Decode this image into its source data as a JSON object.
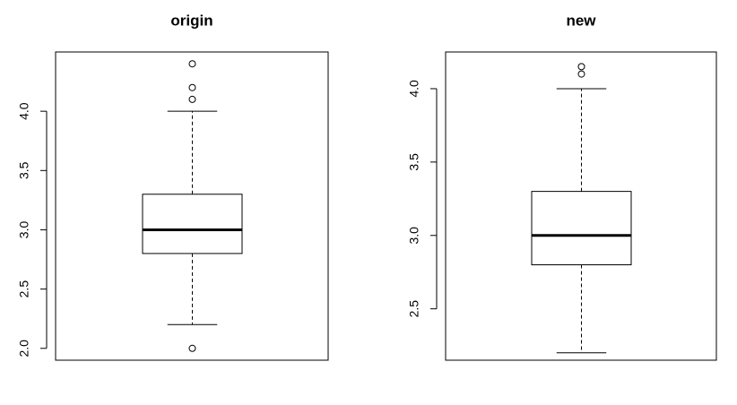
{
  "chart_data": [
    {
      "type": "box",
      "title": "origin",
      "xlabel": "",
      "ylabel": "",
      "ylim": [
        1.9,
        4.5
      ],
      "y_ticks": [
        2.0,
        2.5,
        3.0,
        3.5,
        4.0
      ],
      "y_tick_labels": [
        "2.0",
        "2.5",
        "3.0",
        "3.5",
        "4.0"
      ],
      "box": {
        "whisker_low": 2.2,
        "q1": 2.8,
        "median": 3.0,
        "q3": 3.3,
        "whisker_high": 4.0,
        "outliers": [
          2.0,
          4.1,
          4.2,
          4.4
        ]
      }
    },
    {
      "type": "box",
      "title": "new",
      "xlabel": "",
      "ylabel": "",
      "ylim": [
        2.15,
        4.25
      ],
      "y_ticks": [
        2.5,
        3.0,
        3.5,
        4.0
      ],
      "y_tick_labels": [
        "2.5",
        "3.0",
        "3.5",
        "4.0"
      ],
      "box": {
        "whisker_low": 2.2,
        "q1": 2.8,
        "median": 3.0,
        "q3": 3.3,
        "whisker_high": 4.0,
        "outliers": [
          4.1,
          4.15
        ]
      }
    }
  ]
}
